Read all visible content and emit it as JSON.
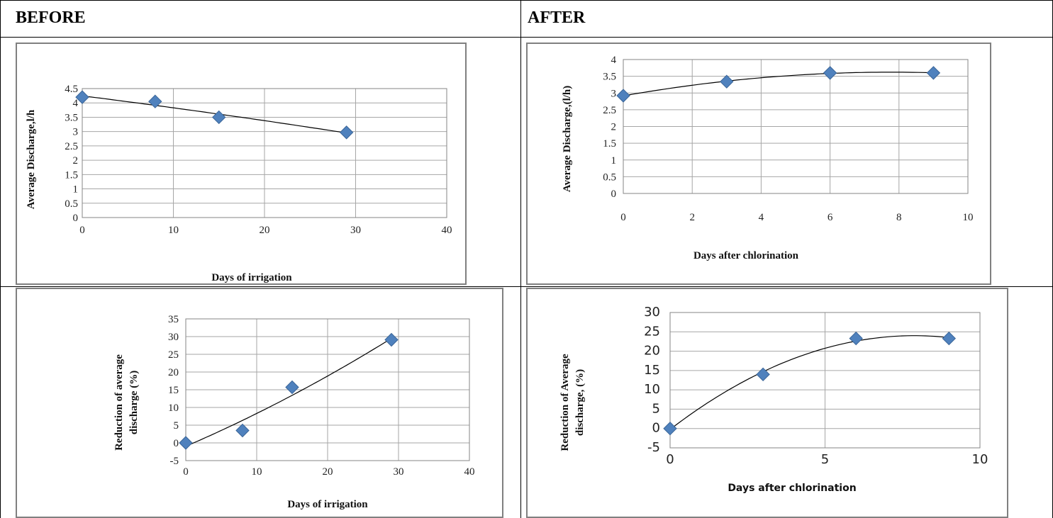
{
  "headers": {
    "before": "BEFORE",
    "after": "AFTER"
  },
  "colors": {
    "marker": "#4F81BD",
    "marker_edge": "#3A6598",
    "grid": "#A6A6A6",
    "trend": "#000000"
  },
  "chart_data": [
    {
      "type": "scatter",
      "panel": "before-discharge",
      "x": [
        0,
        8,
        15,
        29
      ],
      "y": [
        4.2,
        4.05,
        3.5,
        2.97
      ],
      "trendline": "polynomial",
      "xlabel": "Days of irrigation",
      "ylabel": "Average Discharge,l/h",
      "xlim": [
        0,
        40
      ],
      "ylim": [
        0,
        4.5
      ],
      "xticks": [
        "0",
        "10",
        "20",
        "30",
        "40"
      ],
      "yticks": [
        "0",
        "0.5",
        "1",
        "1.5",
        "2",
        "2.5",
        "3",
        "3.5",
        "4",
        "4.5"
      ],
      "grid": true
    },
    {
      "type": "scatter",
      "panel": "after-discharge",
      "x": [
        0,
        3,
        6,
        9
      ],
      "y": [
        2.92,
        3.34,
        3.6,
        3.6
      ],
      "trendline": "polynomial",
      "xlabel": "Days after chlorination",
      "ylabel": "Average Discharge,(l/h)",
      "xlim": [
        0,
        10
      ],
      "ylim": [
        0,
        4
      ],
      "xticks": [
        "0",
        "2",
        "4",
        "6",
        "8",
        "10"
      ],
      "yticks": [
        "0",
        "0.5",
        "1",
        "1.5",
        "2",
        "2.5",
        "3",
        "3.5",
        "4"
      ],
      "grid": true
    },
    {
      "type": "scatter",
      "panel": "before-reduction",
      "x": [
        0,
        8,
        15,
        29
      ],
      "y": [
        0,
        3.5,
        15.7,
        29.1
      ],
      "trendline": "polynomial",
      "xlabel": "Days of irrigation",
      "ylabel_lines": [
        "Reduction of average",
        "discharge (%)"
      ],
      "xlim": [
        0,
        40
      ],
      "ylim": [
        -5,
        35
      ],
      "xticks": [
        "0",
        "10",
        "20",
        "30",
        "40"
      ],
      "yticks": [
        "-5",
        "0",
        "5",
        "10",
        "15",
        "20",
        "25",
        "30",
        "35"
      ],
      "grid": true
    },
    {
      "type": "scatter",
      "panel": "after-reduction",
      "x": [
        0,
        3,
        6,
        9
      ],
      "y": [
        0,
        14,
        23.3,
        23.3
      ],
      "trendline": "polynomial",
      "xlabel": "Days after chlorination",
      "ylabel_lines": [
        "Reduction of Average",
        "discharge, (%)"
      ],
      "xlim": [
        0,
        10
      ],
      "ylim": [
        -5,
        30
      ],
      "xticks": [
        "0",
        "5",
        "10"
      ],
      "yticks": [
        "-5",
        "0",
        "5",
        "10",
        "15",
        "20",
        "25",
        "30"
      ],
      "grid": true
    }
  ]
}
